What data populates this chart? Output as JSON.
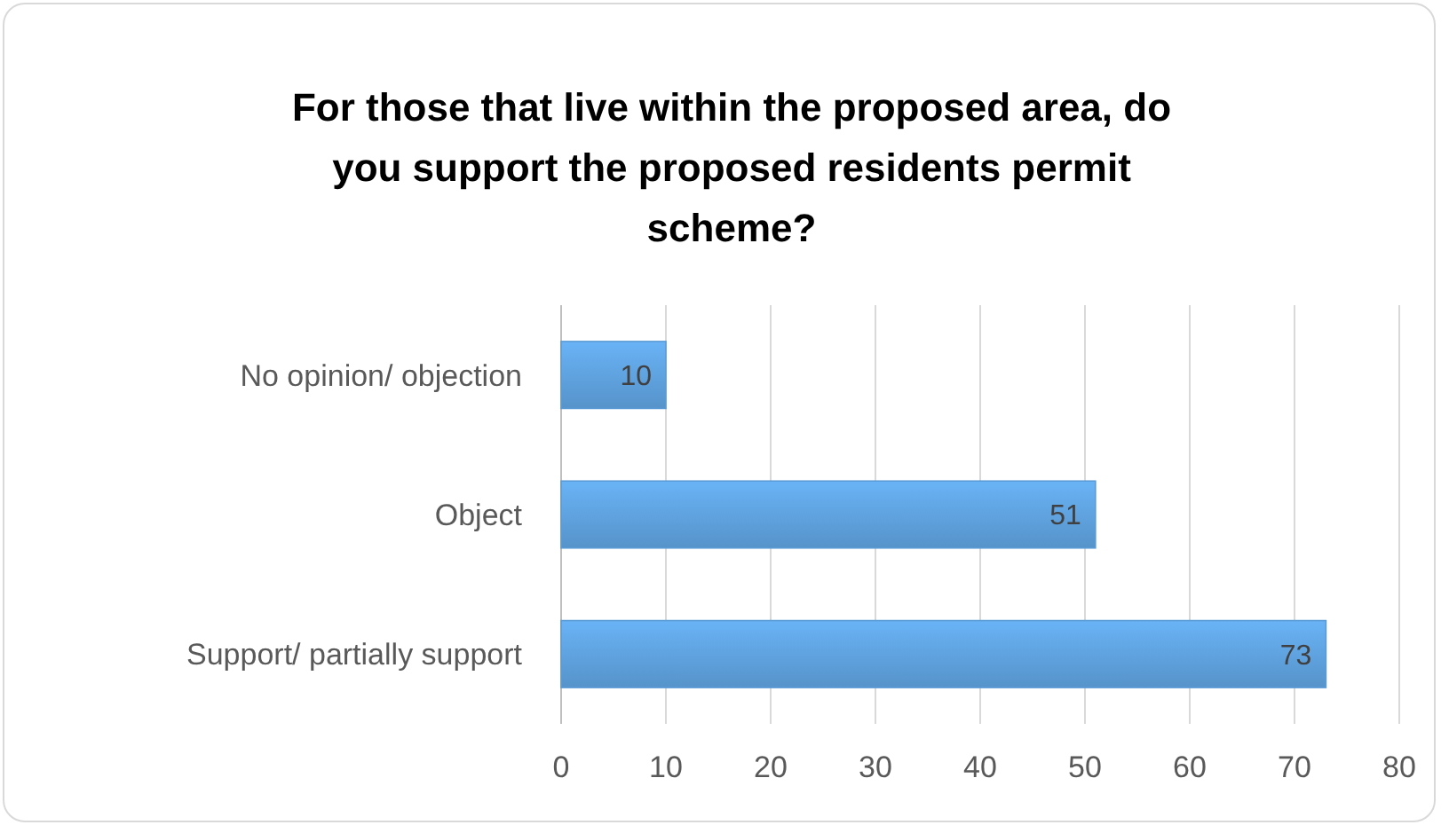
{
  "chart_data": {
    "type": "bar",
    "orientation": "horizontal",
    "title": "For those that live within the proposed area, do you support the proposed residents permit scheme?",
    "categories": [
      "No opinion/ objection",
      "Object",
      "Support/ partially support"
    ],
    "values": [
      10,
      51,
      73
    ],
    "color": "#5b9bd5",
    "xlim": [
      0,
      80
    ],
    "xticks": [
      0,
      10,
      20,
      30,
      40,
      50,
      60,
      70,
      80
    ],
    "grid": "x",
    "data_labels": true
  }
}
